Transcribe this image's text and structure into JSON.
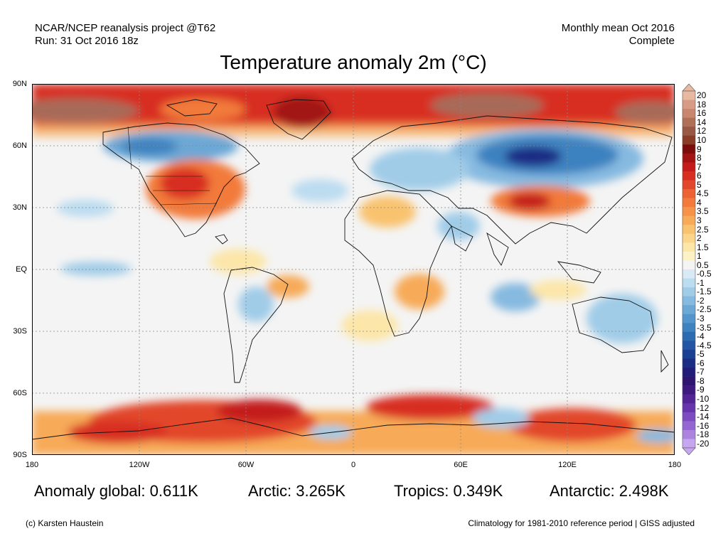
{
  "header": {
    "source_line": "NCAR/NCEP reanalysis project @T62",
    "run_line": "Run: 31 Oct 2016 18z",
    "period_line": "Monthly mean Oct 2016",
    "status_line": "Complete"
  },
  "title": "Temperature anomaly 2m (°C)",
  "lat_labels": [
    "90N",
    "60N",
    "30N",
    "EQ",
    "30S",
    "60S",
    "90S"
  ],
  "lon_labels": [
    "180",
    "120W",
    "60W",
    "0",
    "60E",
    "120E",
    "180"
  ],
  "stats": {
    "global": "Anomaly global: 0.611K",
    "arctic": "Arctic: 3.265K",
    "tropics": "Tropics: 0.349K",
    "antarctic": "Antarctic: 2.498K"
  },
  "footer": {
    "credit": "(c) Karsten Haustein",
    "note": "Climatology for 1981-2010 reference period | GISS adjusted"
  },
  "colorbar": {
    "labels": [
      "20",
      "18",
      "16",
      "14",
      "12",
      "10",
      "9",
      "8",
      "7",
      "6",
      "5",
      "4.5",
      "4",
      "3.5",
      "3",
      "2.5",
      "2",
      "1.5",
      "1",
      "0.5",
      "-0.5",
      "-1",
      "-1.5",
      "-2",
      "-2.5",
      "-3",
      "-3.5",
      "-4",
      "-4.5",
      "-5",
      "-6",
      "-7",
      "-8",
      "-9",
      "-10",
      "-12",
      "-14",
      "-16",
      "-18",
      "-20"
    ],
    "colors": [
      "#e8b8a0",
      "#d89c86",
      "#c8866e",
      "#b07058",
      "#985844",
      "#8a3c26",
      "#7a0c0c",
      "#a21414",
      "#c41c1c",
      "#d82e22",
      "#e2462c",
      "#ec6232",
      "#f27a3a",
      "#f59448",
      "#f7aa58",
      "#f9c26e",
      "#fbd68a",
      "#fce6a8",
      "#fdf2c6",
      "#f4f4f4",
      "#d8eaf6",
      "#bcdcf0",
      "#a0cce8",
      "#86bae0",
      "#6ca8d6",
      "#5496cc",
      "#3e82c0",
      "#2e6cb2",
      "#2256a4",
      "#1a4094",
      "#1a2c84",
      "#221c78",
      "#2e1670",
      "#3e1a80",
      "#522496",
      "#6634ac",
      "#7c4cc0",
      "#9466d2",
      "#ac84e0",
      "#c6a6ee"
    ]
  }
}
